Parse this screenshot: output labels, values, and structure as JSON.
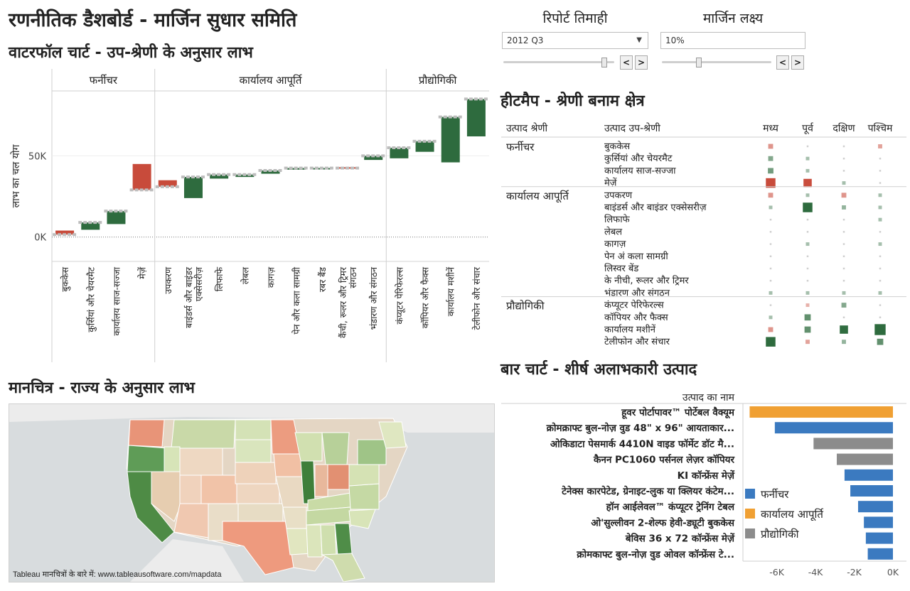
{
  "title": "रणनीतिक डैशबोर्ड - मार्जिन सुधार समिति",
  "sections": {
    "waterfall": "वाटरफॉल चार्ट - उप-श्रेणी के अनुसार लाभ",
    "map": "मानचित्र - राज्य के अनुसार लाभ",
    "heatmap": "हीटमैप - श्रेणी बनाम क्षेत्र",
    "bar": "बार चार्ट - शीर्ष अलाभकारी उत्पाद"
  },
  "controls": {
    "quarter_label": "रिपोर्ट तिमाही",
    "quarter_value": "2012 Q3",
    "quarter_slider": 0.93,
    "margin_label": "मार्जिन लक्ष्य",
    "margin_value": "10%",
    "margin_slider": 0.33,
    "prev": "<",
    "next": ">"
  },
  "map_note": "Tableau मानचित्रों के बारे में: www.tableausoftware.com/mapdata",
  "colors": {
    "positive": "#2e6b3e",
    "negative": "#c84b3b",
    "furniture": "#3b7ac0",
    "office": "#f0a033",
    "technology": "#8c8c8c"
  },
  "chart_data": [
    {
      "type": "bar",
      "subtype": "waterfall",
      "ylabel": "लाभ का चल योग",
      "yticks": [
        "0K",
        "50K"
      ],
      "ylim": [
        -15000,
        90000
      ],
      "groups": [
        {
          "name": "फर्नीचर",
          "items": [
            "बुककेस",
            "कुर्सियां और चेयरमैट",
            "कार्यालय साज-सज्जा",
            "मेज़ें"
          ]
        },
        {
          "name": "कार्यालय आपूर्ति",
          "items": [
            "उपकरण",
            "बाइंडर्स और बाइंडर एक्सेसरीज़",
            "लिफाफे",
            "लेबल",
            "कागज़",
            "पेन और कला सामग्री",
            "रबर बैंड",
            "कैंची, रूलर और ट्रिमर",
            "भंडारण और संगठन"
          ]
        },
        {
          "name": "प्रौद्योगिकी",
          "items": [
            "कंप्यूटर पेरिफेरल्स",
            "कॉपियर और फैक्स",
            "कार्यालय मशीनें",
            "टेलीफोन और संचार"
          ]
        }
      ],
      "categories": [
        "बुककेस",
        "कुर्सियां और चेयरमैट",
        "कार्यालय साज-सज्जा",
        "मेज़ें",
        "उपकरण",
        "बाइंडर्स और बाइंडर एक्सेसरीज़",
        "लिफाफे",
        "लेबल",
        "कागज़",
        "पेन और कला सामग्री",
        "रबर बैंड",
        "कैंची, रूलर और ट्रिमर",
        "भंडारण और संगठन",
        "कंप्यूटर पेरिफेरल्स",
        "कॉपियर और फैक्स",
        "कार्यालय मशीनें",
        "टेलीफोन और संचार"
      ],
      "label_lines": [
        [
          "बुककेस"
        ],
        [
          "कुर्सियां और चेयरमैट"
        ],
        [
          "कार्यालय साज-सज्जा"
        ],
        [
          "मेज़ें"
        ],
        [
          "उपकरण"
        ],
        [
          "बाइंडर्स और बाइंडर",
          "एक्सेसरीज़"
        ],
        [
          "लिफाफे"
        ],
        [
          "लेबल"
        ],
        [
          "कागज़"
        ],
        [
          "पेन और कला सामग्री"
        ],
        [
          "रबर बैंड"
        ],
        [
          "कैंची, रूलर और ट्रिमर",
          "संगठन"
        ],
        [
          "भंडारण और संगठन"
        ],
        [
          "कंप्यूटर पेरिफेरल्स"
        ],
        [
          "कॉपियर और फैक्स"
        ],
        [
          "कार्यालय मशीनें"
        ],
        [
          "टेलीफोन और संचार"
        ]
      ],
      "values": [
        -2500,
        4500,
        8000,
        -16000,
        -4000,
        13000,
        2500,
        1500,
        2000,
        1000,
        200,
        -500,
        2500,
        6500,
        6500,
        28000,
        23000
      ],
      "running_total": [
        1500,
        9000,
        16000,
        29000,
        31000,
        37000,
        38500,
        38500,
        41000,
        42500,
        42500,
        42500,
        50000,
        55000,
        59000,
        74000,
        85000
      ]
    },
    {
      "type": "heatmap",
      "col_headers": [
        "उत्पाद श्रेणी",
        "उत्पाद उप-श्रेणी"
      ],
      "regions": [
        "मध्य",
        "पूर्व",
        "दक्षिण",
        "पश्चिम"
      ],
      "rows": [
        {
          "cat": "फर्नीचर",
          "subs": [
            "बुककेस",
            "कुर्सियां और चेयरमैट",
            "कार्यालय साज-सज्जा",
            "मेज़ें"
          ]
        },
        {
          "cat": "कार्यालय आपूर्ति",
          "subs": [
            "उपकरण",
            "बाइंडर्स और बाइंडर एक्सेसरीज़",
            "लिफाफे",
            "लेबल",
            "कागज़",
            "पेन अं कला सामग्री",
            "लिस्वर बेंड",
            "के नीची, रूलर और ट्रिमर",
            "भंडारण और संगठन"
          ]
        },
        {
          "cat": "प्रौद्योगिकी",
          "subs": [
            "कंप्यूटर पेरिफेरल्स",
            "कॉपियर और फैक्स",
            "कार्यालय मशीनें",
            "टेलीफोन और संचार"
          ]
        }
      ],
      "values": [
        [
          -3,
          0,
          0,
          -2
        ],
        [
          3,
          1,
          0,
          0
        ],
        [
          4,
          1,
          0,
          0
        ],
        [
          -10,
          -8,
          1,
          0
        ],
        [
          -3,
          1,
          -3,
          1
        ],
        [
          1,
          10,
          2,
          1
        ],
        [
          0,
          0,
          0,
          1
        ],
        [
          0,
          0,
          0,
          0
        ],
        [
          0,
          1,
          0,
          1
        ],
        [
          0,
          0,
          0,
          0
        ],
        [
          0,
          0,
          0,
          0
        ],
        [
          0,
          0,
          0,
          0
        ],
        [
          1,
          1,
          1,
          1
        ],
        [
          0,
          -1,
          3,
          0
        ],
        [
          1,
          5,
          0,
          0
        ],
        [
          -3,
          5,
          8,
          12
        ],
        [
          10,
          -2,
          2,
          5
        ]
      ]
    },
    {
      "type": "bar",
      "orientation": "horizontal",
      "title": "उत्पाद का नाम",
      "categories": [
        "हूवर पोर्टापावर™ पोर्टेबल वैक्यूम",
        "क्रोमक्राफ्ट बुल-नोज़ वुड 48\" x 96\" आयताकार...",
        "ओकिडाटा पेसमार्क 4410N वाइड फॉर्मेट डॉट मै...",
        "कैनन PC1060 पर्सनल लेज़र कॉपियर",
        "KI कॉन्फ्रेंस मेज़ें",
        "टेनेक्स कारपेटेड, ग्रेनाइट-लुक या क्लियर कंटेम...",
        "हॉन आईलेवल™ कंप्यूटर ट्रेनिंग टेबल",
        "ओ'सुल्लीवन 2-शेल्फ हेवी-ड्यूटी बुककेस",
        "बेविस 36 x 72 कॉन्फ्रेंस मेज़ें",
        "क्रोमकाफ्ट बुल-नोज़ वुड ओवल कॉन्फ्रेंस टे..."
      ],
      "values": [
        -7400,
        -6100,
        -4100,
        -2900,
        -2500,
        -2200,
        -1800,
        -1500,
        -1400,
        -1300
      ],
      "series_of": [
        "office",
        "furniture",
        "technology",
        "technology",
        "furniture",
        "furniture",
        "furniture",
        "furniture",
        "furniture",
        "furniture"
      ],
      "xticks": [
        "-6K",
        "-4K",
        "-2K",
        "0K"
      ],
      "xlim": [
        -7600,
        0
      ],
      "legend": [
        {
          "key": "furniture",
          "name": "फर्नीचर"
        },
        {
          "key": "office",
          "name": "कार्यालय आपूर्ति"
        },
        {
          "key": "technology",
          "name": "प्रौद्योगिकी"
        }
      ]
    }
  ]
}
